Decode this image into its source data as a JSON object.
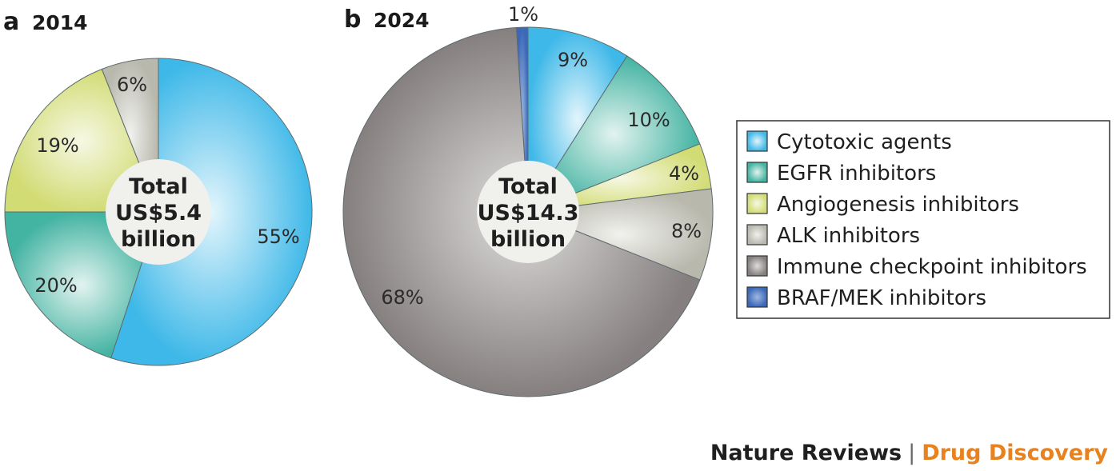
{
  "chart_data": [
    {
      "type": "pie",
      "panel": "a",
      "title": "2014",
      "center_label": [
        "Total",
        "US$5.4",
        "billion"
      ],
      "categories": [
        "Cytotoxic agents",
        "EGFR inhibitors",
        "Angiogenesis inhibitors",
        "ALK inhibitors"
      ],
      "values": [
        55,
        20,
        19,
        6
      ],
      "labels": [
        "55%",
        "20%",
        "19%",
        "6%"
      ]
    },
    {
      "type": "pie",
      "panel": "b",
      "title": "2024",
      "center_label": [
        "Total",
        "US$14.3",
        "billion"
      ],
      "categories": [
        "Cytotoxic agents",
        "EGFR inhibitors",
        "Angiogenesis inhibitors",
        "ALK inhibitors",
        "Immune checkpoint inhibitors",
        "BRAF/MEK inhibitors"
      ],
      "values": [
        9,
        10,
        4,
        8,
        68,
        1
      ],
      "labels": [
        "9%",
        "10%",
        "4%",
        "8%",
        "68%",
        "1%"
      ]
    }
  ],
  "legend": {
    "items": [
      {
        "label": "Cytotoxic agents",
        "color": "#3eb8e8"
      },
      {
        "label": "EGFR inhibitors",
        "color": "#43b3a2"
      },
      {
        "label": "Angiogenesis inhibitors",
        "color": "#d2dc75"
      },
      {
        "label": "ALK inhibitors",
        "color": "#b8b8ad"
      },
      {
        "label": "Immune checkpoint inhibitors",
        "color": "#857f7f"
      },
      {
        "label": "BRAF/MEK inhibitors",
        "color": "#3c68b8"
      }
    ]
  },
  "credit": {
    "journal": "Nature Reviews",
    "separator": "|",
    "section": "Drug Discovery",
    "section_color": "#e8821e"
  }
}
